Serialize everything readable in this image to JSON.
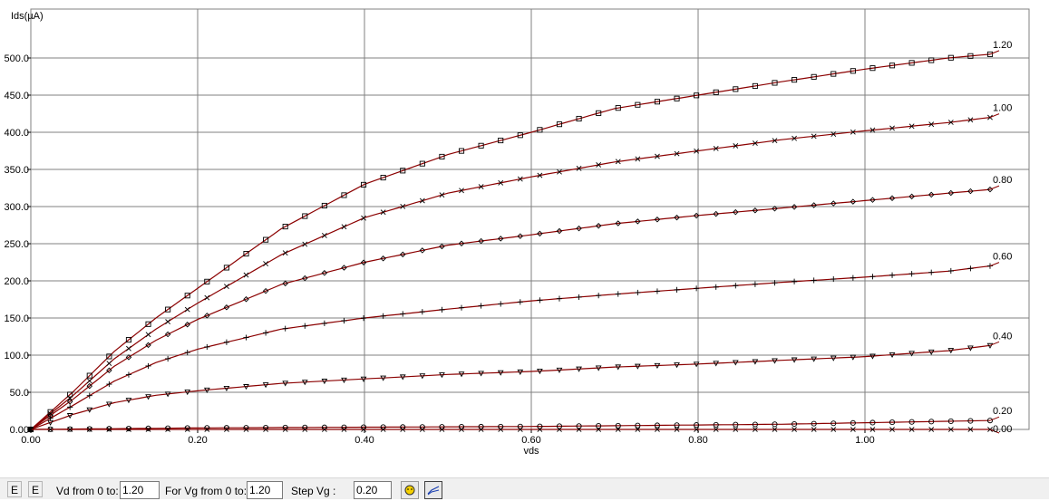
{
  "chart_data": {
    "type": "line",
    "ylabel": "Ids(µA)",
    "xlabel": "vds",
    "xlim": [
      0,
      1.2
    ],
    "ylim": [
      0,
      550
    ],
    "x_ticks": [
      "0.00",
      "0.20",
      "0.40",
      "0.60",
      "0.80",
      "1.00"
    ],
    "y_ticks": [
      "0.00",
      "50.0",
      "100.0",
      "150.0",
      "200.0",
      "250.0",
      "300.0",
      "350.0",
      "400.0",
      "450.0",
      "500.0"
    ],
    "grid": true,
    "x_max_value": 1.15,
    "series": [
      {
        "name": "1.20",
        "marker": "square",
        "x": [
          0,
          0.05,
          0.1,
          0.15,
          0.2,
          0.3,
          0.4,
          0.5,
          0.6,
          0.7,
          0.8,
          0.9,
          1.0,
          1.1,
          1.15
        ],
        "y": [
          0,
          50,
          105,
          150,
          190,
          270,
          330,
          370,
          400,
          432,
          450,
          468,
          485,
          500,
          505
        ]
      },
      {
        "name": "1.00",
        "marker": "x",
        "x": [
          0,
          0.05,
          0.1,
          0.15,
          0.2,
          0.3,
          0.4,
          0.5,
          0.6,
          0.7,
          0.8,
          0.9,
          1.0,
          1.1,
          1.15
        ],
        "y": [
          0,
          45,
          95,
          135,
          170,
          235,
          285,
          318,
          340,
          360,
          375,
          390,
          402,
          413,
          420
        ]
      },
      {
        "name": "0.80",
        "marker": "diamond",
        "x": [
          0,
          0.05,
          0.1,
          0.15,
          0.2,
          0.3,
          0.4,
          0.5,
          0.6,
          0.7,
          0.8,
          0.9,
          1.0,
          1.1,
          1.15
        ],
        "y": [
          0,
          40,
          85,
          120,
          148,
          195,
          225,
          248,
          262,
          277,
          288,
          298,
          308,
          318,
          323
        ]
      },
      {
        "name": "0.60",
        "marker": "plus",
        "x": [
          0,
          0.05,
          0.1,
          0.15,
          0.2,
          0.3,
          0.4,
          0.5,
          0.6,
          0.7,
          0.8,
          0.9,
          1.0,
          1.1,
          1.15
        ],
        "y": [
          0,
          32,
          65,
          90,
          108,
          135,
          150,
          162,
          173,
          182,
          190,
          198,
          205,
          213,
          220
        ]
      },
      {
        "name": "0.40",
        "marker": "triangle-down",
        "x": [
          0,
          0.05,
          0.1,
          0.15,
          0.2,
          0.3,
          0.4,
          0.5,
          0.6,
          0.7,
          0.8,
          0.9,
          1.0,
          1.1,
          1.15
        ],
        "y": [
          0,
          20,
          36,
          46,
          52,
          62,
          68,
          74,
          78,
          84,
          88,
          93,
          98,
          106,
          113
        ]
      },
      {
        "name": "0.20",
        "marker": "circle",
        "x": [
          0,
          0.05,
          0.1,
          0.15,
          0.2,
          0.3,
          0.4,
          0.5,
          0.6,
          0.7,
          0.8,
          0.9,
          1.0,
          1.1,
          1.15
        ],
        "y": [
          0,
          0.5,
          1,
          1.5,
          2,
          2.5,
          3,
          3.5,
          4,
          5,
          6,
          7,
          9,
          11,
          12
        ]
      },
      {
        "name": "0.00",
        "marker": "x",
        "x": [
          0,
          0.05,
          0.1,
          0.15,
          0.2,
          0.3,
          0.4,
          0.5,
          0.6,
          0.7,
          0.8,
          0.9,
          1.0,
          1.1,
          1.15
        ],
        "y": [
          0,
          0,
          0,
          0,
          0,
          0,
          0,
          0,
          0,
          0,
          0,
          0,
          0,
          0,
          0
        ]
      }
    ]
  },
  "colors": {
    "curve": "#8b0000",
    "marker": "#000000",
    "grid": "#808080",
    "background": "#ffffff"
  },
  "toolbar": {
    "btn1_label": "E",
    "btn2_label": "E",
    "vd_label": "Vd from 0 to:",
    "vd_value": "1.20",
    "vg_label": "For Vg from 0 to:",
    "vg_value": "1.20",
    "step_label": "Step Vg :",
    "step_value": "0.20",
    "icon1": "smiley-icon",
    "icon2": "curve-plot-icon"
  }
}
